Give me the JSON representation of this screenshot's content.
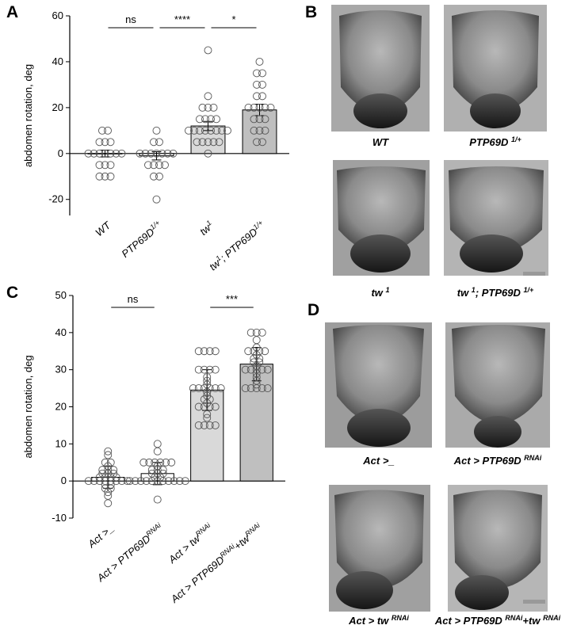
{
  "chart_data": [
    {
      "type": "bar",
      "panel": "A",
      "ylabel": "abdomen rotation, deg",
      "categories": [
        [
          "WT"
        ],
        [
          "PTP69D",
          "1/+"
        ],
        [
          "tw",
          "1"
        ],
        [
          "tw",
          "1",
          "; PTP69D",
          "1/+"
        ]
      ],
      "values": [
        0,
        -1,
        12,
        19
      ],
      "errors": [
        1.5,
        1.8,
        2,
        2.5
      ],
      "colors": [
        "#ffffff",
        "#ffffff",
        "#d9d9d9",
        "#bfbfbf"
      ],
      "points": [
        [
          10,
          10,
          5,
          5,
          5,
          0,
          0,
          0,
          0,
          0,
          0,
          0,
          -5,
          -5,
          -5,
          -10,
          -10,
          -10
        ],
        [
          10,
          5,
          5,
          0,
          0,
          0,
          0,
          0,
          0,
          0,
          -5,
          -5,
          -5,
          -5,
          -10,
          -10,
          -20
        ],
        [
          45,
          25,
          20,
          20,
          20,
          15,
          15,
          15,
          15,
          10,
          10,
          10,
          10,
          10,
          10,
          10,
          10,
          5,
          5,
          5,
          5,
          5,
          0
        ],
        [
          40,
          35,
          35,
          30,
          30,
          25,
          25,
          20,
          20,
          20,
          20,
          20,
          15,
          15,
          15,
          10,
          10,
          10,
          5,
          5
        ]
      ],
      "ylim": [
        -27,
        60
      ],
      "yticks": [
        60,
        40,
        20,
        0,
        -20
      ],
      "comparisons": [
        {
          "label": "ns",
          "from": 0,
          "to": 1
        },
        {
          "label": "****",
          "from": 1,
          "to": 2
        },
        {
          "label": "*",
          "from": 2,
          "to": 3
        }
      ]
    },
    {
      "type": "bar",
      "panel": "C",
      "ylabel": "abdomen rotation, deg",
      "categories": [
        [
          "Act >_"
        ],
        [
          "Act > PTP69D",
          "RNAi"
        ],
        [
          "Act > tw",
          "RNAi"
        ],
        [
          "Act > PTP69D",
          "RNAi",
          "+tw",
          "RNAi"
        ]
      ],
      "values": [
        1,
        2,
        24.5,
        31.5
      ],
      "errors": [
        3,
        3,
        5.5,
        4.5
      ],
      "colors": [
        "#ffffff",
        "#ffffff",
        "#d9d9d9",
        "#bfbfbf"
      ],
      "points": [
        [
          8,
          7,
          5,
          5,
          4,
          3,
          3,
          3,
          2,
          2,
          2,
          1,
          1,
          1,
          1,
          0,
          0,
          0,
          0,
          0,
          0,
          0,
          0,
          -1,
          -1,
          -2,
          -2,
          -3,
          -4,
          -6
        ],
        [
          10,
          8,
          5,
          5,
          5,
          5,
          5,
          5,
          4,
          3,
          3,
          3,
          2,
          2,
          2,
          1,
          1,
          0,
          0,
          0,
          0,
          0,
          0,
          0,
          0,
          0,
          0,
          0,
          -5
        ],
        [
          35,
          35,
          35,
          35,
          30,
          30,
          30,
          30,
          28,
          27,
          26,
          25,
          25,
          25,
          25,
          25,
          25,
          24,
          23,
          22,
          22,
          21,
          20,
          20,
          20,
          20,
          18,
          17,
          15,
          15,
          15,
          15
        ],
        [
          40,
          40,
          40,
          38,
          36,
          35,
          35,
          35,
          35,
          34,
          33,
          33,
          32,
          32,
          31,
          30,
          30,
          30,
          30,
          30,
          29,
          28,
          27,
          26,
          25,
          25,
          25,
          25,
          25
        ]
      ],
      "ylim": [
        -10,
        50
      ],
      "yticks": [
        50,
        40,
        30,
        20,
        10,
        0,
        -10
      ],
      "comparisons": [
        {
          "label": "ns",
          "from": 0,
          "to": 1
        },
        {
          "label": "***",
          "from": 2,
          "to": 3
        }
      ]
    }
  ],
  "panel_b": {
    "letter": "B",
    "captions": [
      [
        "WT"
      ],
      [
        "PTP69D ",
        "1/+"
      ],
      [
        "tw ",
        "1"
      ],
      [
        "tw ",
        "1",
        "; PTP69D ",
        "1/+"
      ]
    ]
  },
  "panel_d": {
    "letter": "D",
    "captions": [
      [
        "Act >_"
      ],
      [
        "Act > PTP69D ",
        "RNAi"
      ],
      [
        "Act > tw ",
        "RNAi"
      ],
      [
        "Act > PTP69D ",
        "RNAi",
        "+tw ",
        "RNAi"
      ]
    ]
  }
}
